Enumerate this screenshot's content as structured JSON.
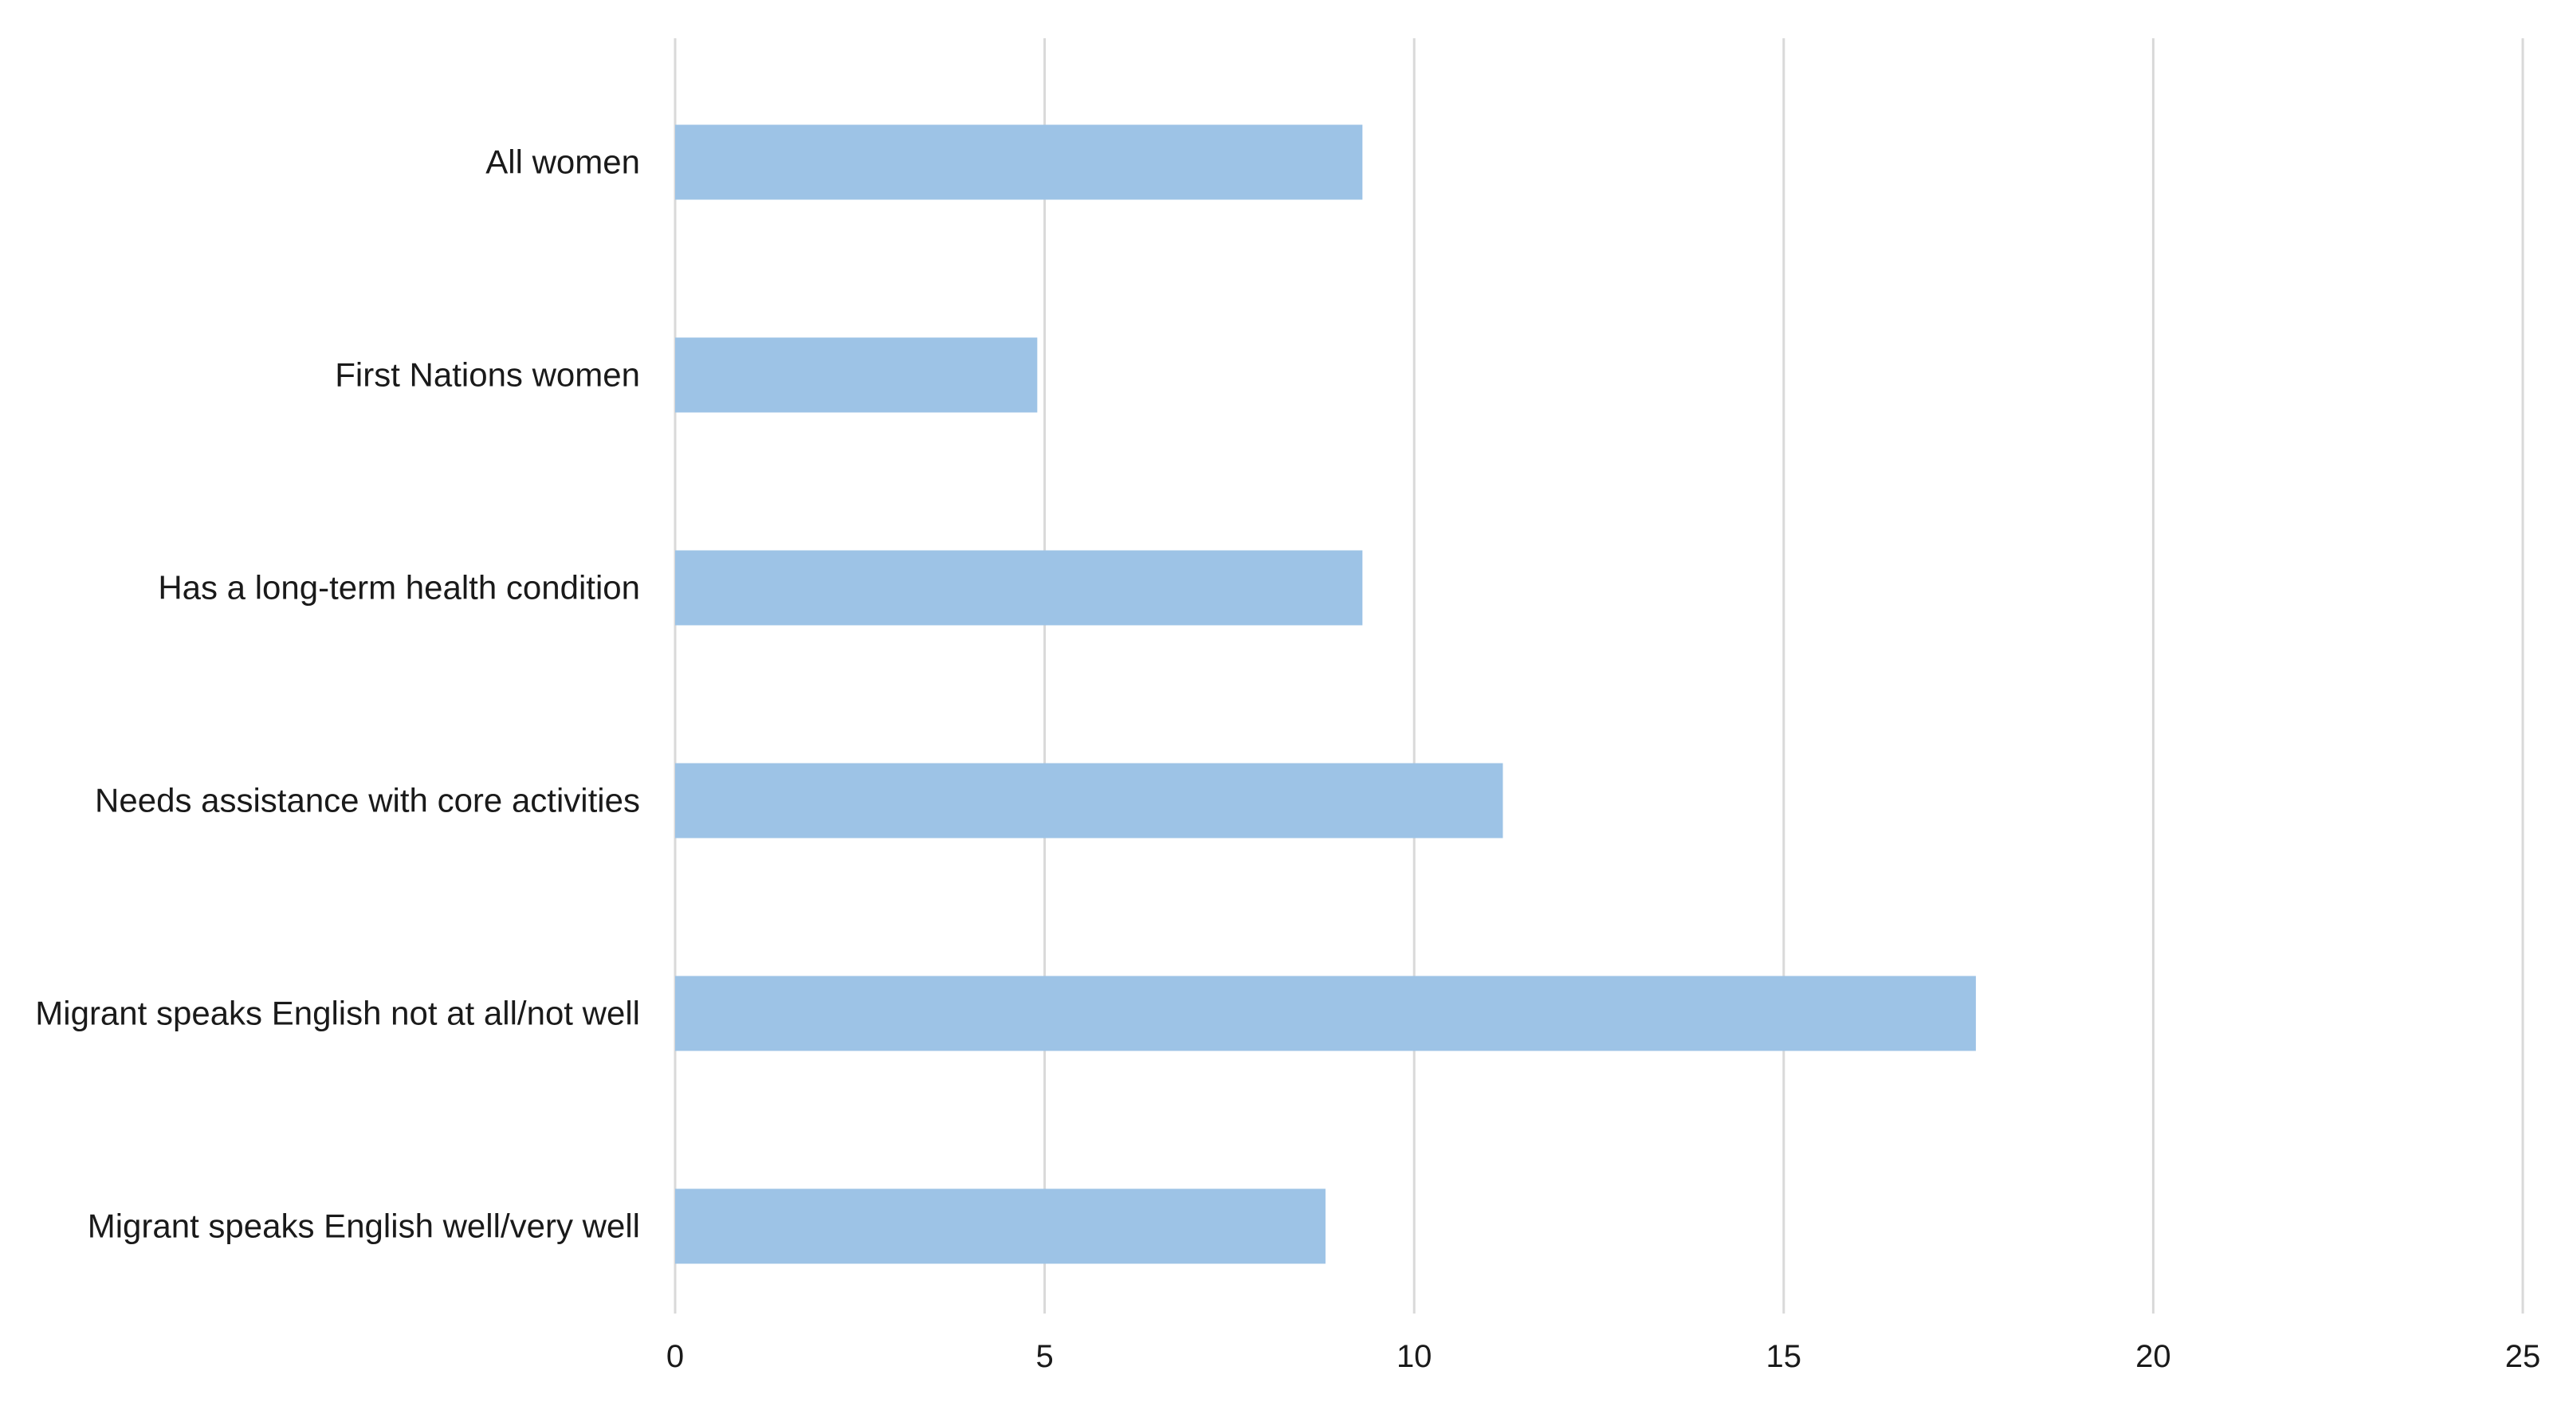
{
  "chart_data": {
    "type": "bar",
    "orientation": "horizontal",
    "title": "",
    "xlabel": "",
    "ylabel": "",
    "categories": [
      "All women",
      "First Nations women",
      "Has a long-term health condition",
      "Needs assistance with core activities",
      "Migrant speaks English not at all/not well",
      "Migrant speaks English well/very well"
    ],
    "values": [
      9.3,
      4.9,
      9.3,
      11.2,
      17.6,
      8.8
    ],
    "xlim": [
      0,
      25
    ],
    "xticks": [
      0,
      5,
      10,
      15,
      20,
      25
    ],
    "grid": true,
    "legend": "none",
    "bar_color": "#9dc3e6",
    "gridline_color": "#d9d9d9"
  }
}
